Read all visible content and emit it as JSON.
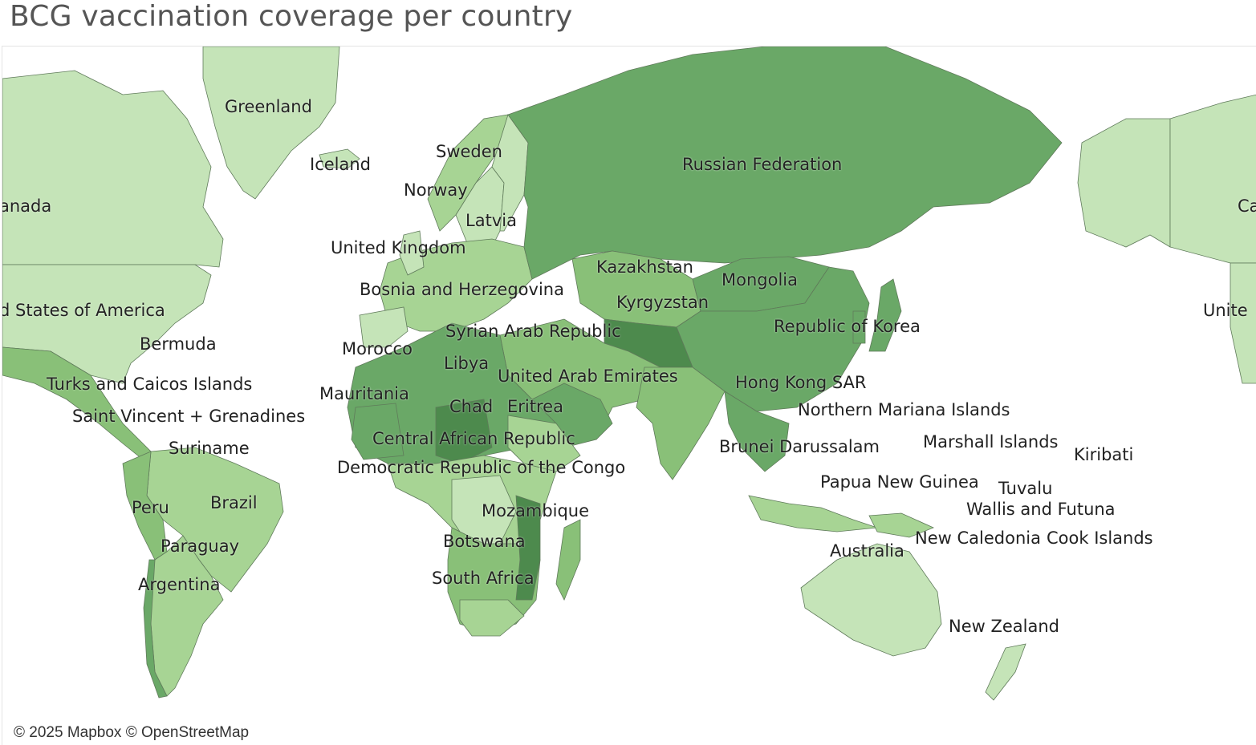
{
  "title": "BCG vaccination coverage per country",
  "attribution": "© 2025 Mapbox © OpenStreetMap",
  "colors": {
    "ocean": "#ffffff",
    "very_light": "#c5e4b8",
    "light": "#a7d494",
    "medium": "#89c078",
    "dark": "#6aa867",
    "darker": "#4d8a4d",
    "border": "#5f7a5a"
  },
  "labels": {
    "greenland": "Greenland",
    "iceland": "Iceland",
    "sweden": "Sweden",
    "norway": "Norway",
    "latvia": "Latvia",
    "united_kingdom": "United Kingdom",
    "russia": "Russian Federation",
    "canada_left": "anada",
    "canada_right": "Ca",
    "usa_left": "d States of America",
    "usa_right": "Unite",
    "bermuda": "Bermuda",
    "turks": "Turks and Caicos Islands",
    "saint_vincent": "Saint Vincent + Grenadines",
    "suriname": "Suriname",
    "peru": "Peru",
    "brazil": "Brazil",
    "paraguay": "Paraguay",
    "argentina": "Argentina",
    "bosnia": "Bosnia and Herzegovina",
    "kazakhstan": "Kazakhstan",
    "mongolia": "Mongolia",
    "kyrgyzstan": "Kyrgyzstan",
    "syria": "Syrian Arab Republic",
    "morocco": "Morocco",
    "libya": "Libya",
    "uae": "United Arab Emirates",
    "mauritania": "Mauritania",
    "chad": "Chad",
    "eritrea": "Eritrea",
    "car": "Central African Republic",
    "drc": "Democratic Republic of the Congo",
    "mozambique": "Mozambique",
    "botswana": "Botswana",
    "south_africa": "South Africa",
    "korea": "Republic of Korea",
    "hong_kong": "Hong Kong SAR",
    "nmi": "Northern Mariana Islands",
    "brunei": "Brunei Darussalam",
    "marshall": "Marshall Islands",
    "kiribati": "Kiribati",
    "png": "Papua New Guinea",
    "tuvalu": "Tuvalu",
    "wallis": "Wallis and Futuna",
    "new_caledonia": "New Caledonia",
    "cook": "Cook Islands",
    "australia": "Australia",
    "new_zealand": "New Zealand"
  }
}
